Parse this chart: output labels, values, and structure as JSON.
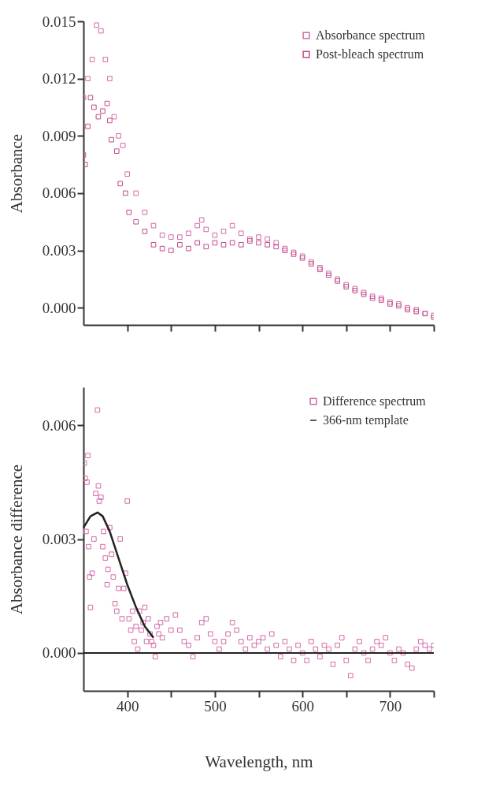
{
  "chart_data": [
    {
      "type": "scatter",
      "ylabel": "Absorbance",
      "legend": "top right",
      "grid": false,
      "tick_labels": "y",
      "xlim": [
        350,
        750
      ],
      "xticks": [
        400,
        450,
        500,
        550,
        600,
        650,
        700,
        750
      ],
      "ylim": [
        -0.0009,
        0.015
      ],
      "yticks": [
        {
          "value": 0,
          "label": "0.000"
        },
        0.003,
        0.006,
        0.009,
        0.012,
        0.015
      ],
      "series": [
        {
          "name": "Absorbance spectrum",
          "marker": "square",
          "color": "#d46aa8",
          "x": [
            350,
            355,
            360,
            365,
            370,
            375,
            380,
            385,
            390,
            395,
            400,
            410,
            420,
            430,
            440,
            450,
            460,
            470,
            480,
            485,
            490,
            500,
            510,
            520,
            530,
            540,
            550,
            560,
            570,
            580,
            590,
            600,
            610,
            620,
            630,
            640,
            650,
            660,
            670,
            680,
            690,
            700,
            710,
            720,
            730,
            740,
            750
          ],
          "values": [
            0.011,
            0.012,
            0.013,
            0.0148,
            0.0145,
            0.013,
            0.012,
            0.01,
            0.009,
            0.0085,
            0.007,
            0.006,
            0.005,
            0.0043,
            0.0038,
            0.0037,
            0.0037,
            0.0039,
            0.0043,
            0.0046,
            0.0041,
            0.0038,
            0.004,
            0.0043,
            0.0039,
            0.0036,
            0.0037,
            0.0036,
            0.0034,
            0.0031,
            0.0029,
            0.0027,
            0.0024,
            0.0021,
            0.0018,
            0.0015,
            0.0012,
            0.001,
            0.0008,
            0.0006,
            0.0005,
            0.0003,
            0.0002,
            0,
            -0.0001,
            -0.0003,
            -0.0004
          ]
        },
        {
          "name": "Post-bleach spectrum",
          "marker": "square",
          "color": "#c24a8a",
          "x": [
            350,
            352,
            355,
            358,
            362,
            367,
            372,
            377,
            380,
            382,
            388,
            392,
            398,
            402,
            410,
            420,
            430,
            440,
            450,
            460,
            470,
            480,
            490,
            500,
            510,
            520,
            530,
            540,
            550,
            560,
            570,
            580,
            590,
            600,
            610,
            620,
            630,
            640,
            650,
            660,
            670,
            680,
            690,
            700,
            710,
            720,
            730,
            740,
            750
          ],
          "values": [
            0.008,
            0.0075,
            0.0095,
            0.011,
            0.0105,
            0.01,
            0.0103,
            0.0107,
            0.0098,
            0.0088,
            0.0082,
            0.0065,
            0.006,
            0.005,
            0.0045,
            0.004,
            0.0033,
            0.0031,
            0.003,
            0.0033,
            0.0031,
            0.0034,
            0.0032,
            0.0034,
            0.0033,
            0.0034,
            0.0033,
            0.0035,
            0.0034,
            0.0033,
            0.0032,
            0.003,
            0.0028,
            0.0026,
            0.0023,
            0.002,
            0.0017,
            0.0014,
            0.0011,
            0.0009,
            0.0007,
            0.0005,
            0.0004,
            0.0002,
            0.0001,
            -0.0001,
            -0.0002,
            -0.0003,
            -0.0005
          ]
        }
      ]
    },
    {
      "type": "scatter",
      "xlabel": "Wavelength, nm",
      "ylabel": "Absorbance  difference",
      "legend": "top right",
      "grid": false,
      "xlim": [
        350,
        750
      ],
      "xticks": [
        400,
        {
          "value": 450,
          "label": null
        },
        500,
        {
          "value": 550,
          "label": null
        },
        600,
        {
          "value": 650,
          "label": null
        },
        700,
        {
          "value": 750,
          "label": null
        }
      ],
      "ylim": [
        -0.001,
        0.007
      ],
      "yticks": [
        {
          "value": 0,
          "label": "0.000"
        },
        0.003,
        0.006
      ],
      "ref_lines": [
        {
          "axis": "y",
          "value": 0,
          "color": "#222222"
        }
      ],
      "series": [
        {
          "name": "Difference spectrum",
          "marker": "square",
          "color": "#d46aa8",
          "x": [
            351,
            352,
            353,
            354,
            355,
            356,
            357,
            358,
            360,
            362,
            364,
            366,
            367,
            368,
            370,
            372,
            373,
            375,
            377,
            378,
            380,
            382,
            384,
            386,
            388,
            390,
            392,
            394,
            396,
            398,
            400,
            402,
            404,
            406,
            408,
            410,
            412,
            414,
            416,
            418,
            420,
            422,
            424,
            426,
            428,
            430,
            432,
            434,
            436,
            438,
            440,
            445,
            450,
            455,
            460,
            465,
            470,
            475,
            480,
            485,
            490,
            495,
            500,
            505,
            510,
            515,
            520,
            525,
            530,
            535,
            540,
            545,
            550,
            555,
            560,
            565,
            570,
            575,
            580,
            585,
            590,
            595,
            600,
            605,
            610,
            615,
            620,
            625,
            630,
            635,
            640,
            645,
            650,
            655,
            660,
            665,
            670,
            675,
            680,
            685,
            690,
            695,
            700,
            705,
            710,
            715,
            720,
            725,
            730,
            735,
            740,
            745,
            750
          ],
          "values": [
            0.005,
            0.0046,
            0.0032,
            0.0045,
            0.0052,
            0.0028,
            0.002,
            0.0012,
            0.0021,
            0.003,
            0.0042,
            0.0064,
            0.0044,
            0.004,
            0.0041,
            0.0028,
            0.0032,
            0.0025,
            0.0018,
            0.0022,
            0.0033,
            0.0026,
            0.002,
            0.0013,
            0.0011,
            0.0017,
            0.003,
            0.0009,
            0.0017,
            0.0021,
            0.004,
            0.0009,
            0.0006,
            0.0011,
            0.0003,
            0.0007,
            0.0001,
            0.0011,
            0.0006,
            0.0008,
            0.0012,
            0.0003,
            0.0009,
            0.0005,
            0.0003,
            0.0002,
            -0.0001,
            0.0007,
            0.0005,
            0.0008,
            0.0004,
            0.0009,
            0.0006,
            0.001,
            0.0006,
            0.0003,
            0.0002,
            -0.0001,
            0.0004,
            0.0008,
            0.0009,
            0.0005,
            0.0003,
            0.0001,
            0.0003,
            0.0005,
            0.0008,
            0.0006,
            0.0003,
            0.0001,
            0.0004,
            0.0002,
            0.0003,
            0.0004,
            0.0001,
            0.0005,
            0.0002,
            -0.0001,
            0.0003,
            0.0001,
            -0.0002,
            0.0002,
            0,
            -0.0002,
            0.0003,
            0.0001,
            -0.0001,
            0.0002,
            0.0001,
            -0.0003,
            0.0002,
            0.0004,
            -0.0002,
            -0.0006,
            0.0001,
            0.0003,
            0,
            -0.0002,
            0.0001,
            0.0003,
            0.0002,
            0.0004,
            0,
            -0.0002,
            0.0001,
            0,
            -0.0003,
            -0.0004,
            0.0001,
            0.0003,
            0.0002,
            0.0001,
            0.0002
          ]
        },
        {
          "name": "366-nm template",
          "type": "line",
          "color": "#222222",
          "x": [
            350,
            358,
            366,
            372,
            380,
            390,
            400,
            410,
            420,
            430
          ],
          "values": [
            0.0033,
            0.0036,
            0.0037,
            0.0036,
            0.0032,
            0.0025,
            0.0018,
            0.0012,
            0.0007,
            0.0004
          ]
        }
      ]
    }
  ]
}
